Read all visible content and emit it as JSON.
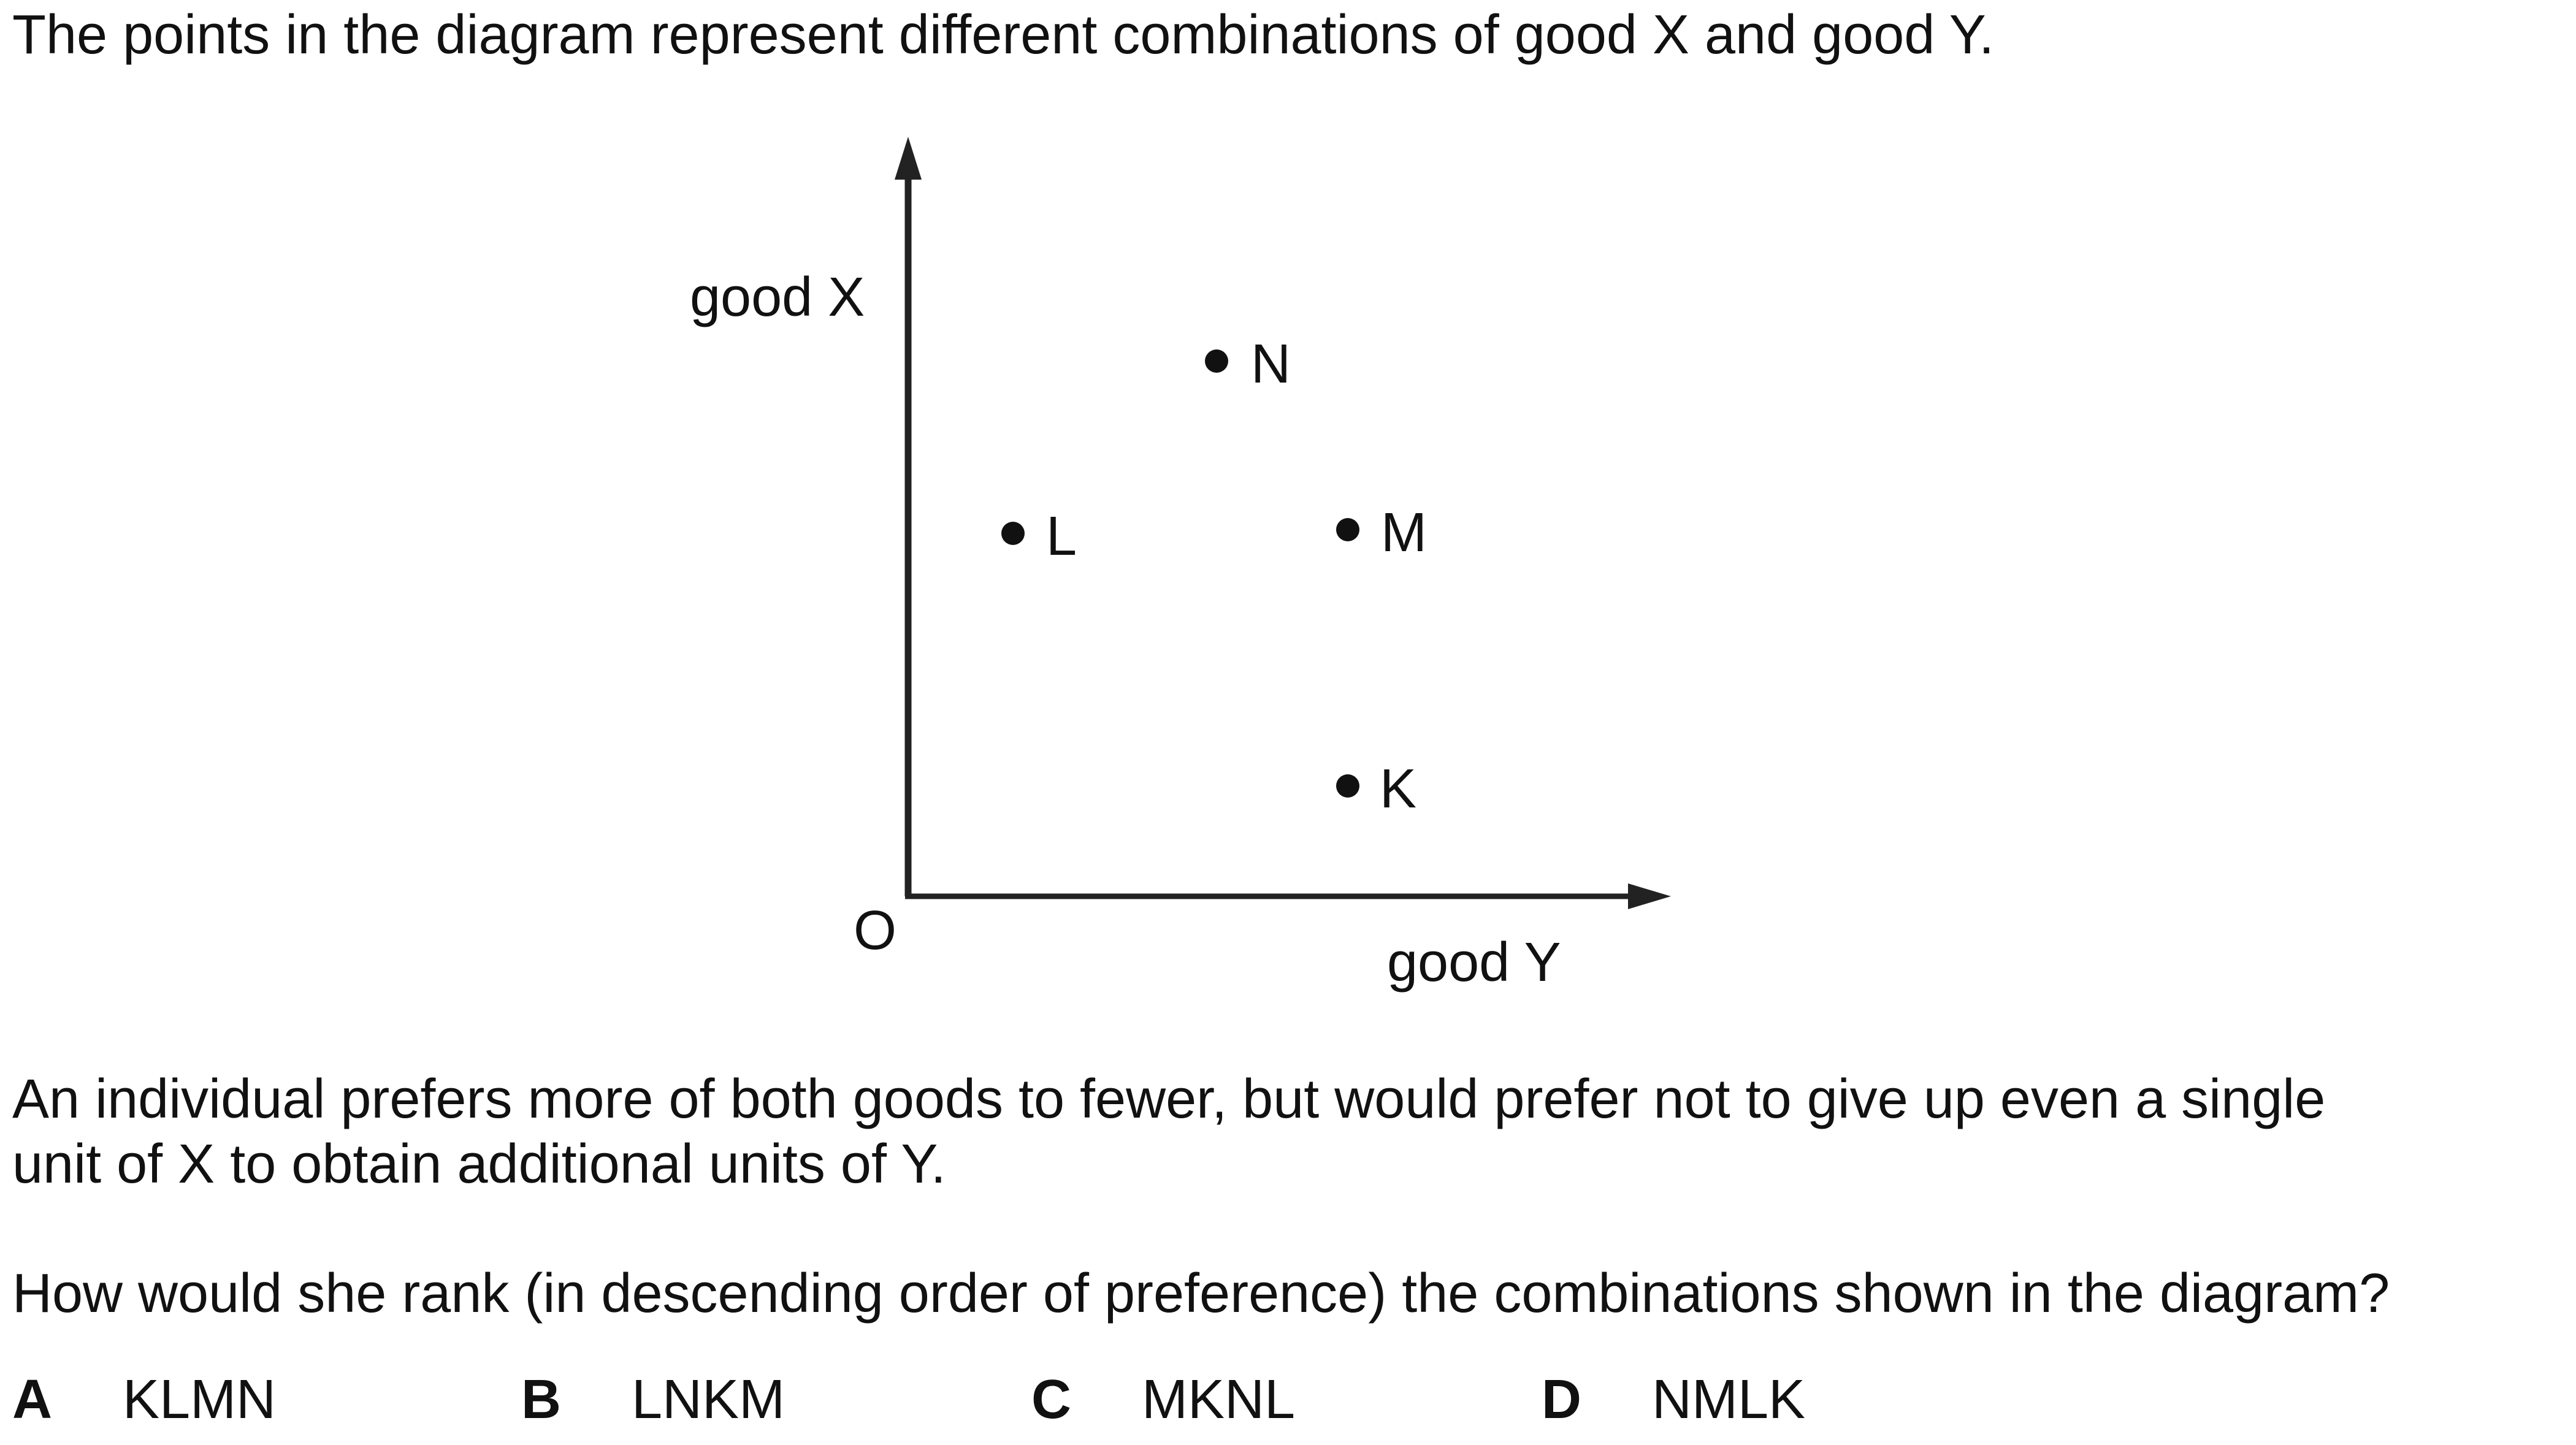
{
  "question": {
    "intro": "The points in the diagram represent different combinations of good X and good Y.",
    "body_line1": "An individual prefers more of both goods to fewer, but would prefer not to give up even a single",
    "body_line2": "unit of X to obtain additional units of Y.",
    "prompt": "How would she rank (in descending order of preference) the combinations shown in the diagram?"
  },
  "diagram": {
    "y_axis_label": "good X",
    "x_axis_label": "good Y",
    "origin_label": "O",
    "points": [
      {
        "label": "N"
      },
      {
        "label": "L"
      },
      {
        "label": "M"
      },
      {
        "label": "K"
      }
    ]
  },
  "options": [
    {
      "letter": "A",
      "text": "KLMN"
    },
    {
      "letter": "B",
      "text": "LNKM"
    },
    {
      "letter": "C",
      "text": "MKNL"
    },
    {
      "letter": "D",
      "text": "NMLK"
    }
  ]
}
